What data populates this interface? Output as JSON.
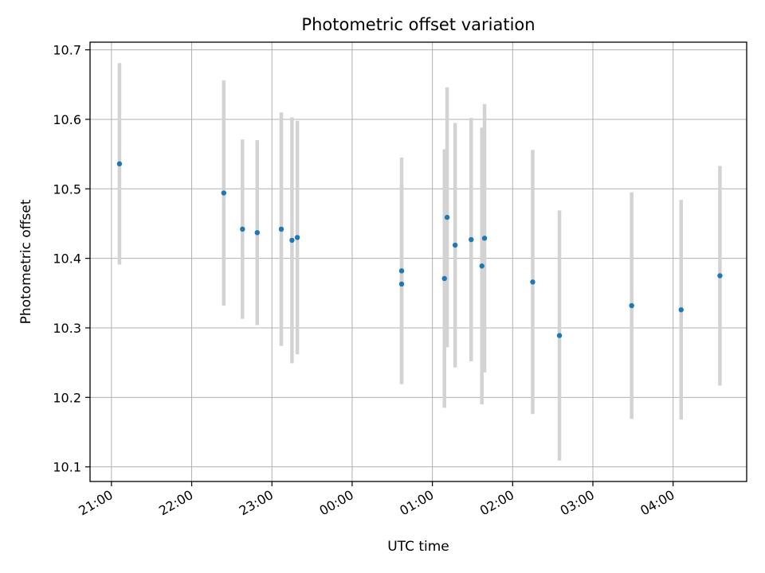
{
  "chart_data": {
    "type": "scatter",
    "title": "Photometric offset variation",
    "xlabel": "UTC time",
    "ylabel": "Photometric offset",
    "x_ticks": [
      "21:00",
      "22:00",
      "23:00",
      "00:00",
      "01:00",
      "02:00",
      "03:00",
      "04:00"
    ],
    "y_ticks": [
      "10.1",
      "10.2",
      "10.3",
      "10.4",
      "10.5",
      "10.6",
      "10.7"
    ],
    "xlim": [
      "20:44",
      "04:55"
    ],
    "ylim": [
      10.079,
      10.711
    ],
    "grid": true,
    "colors": {
      "point": "#1f77b4",
      "errorbar": "#d3d3d3",
      "grid": "#b0b0b0"
    },
    "points": [
      {
        "t": "21:06",
        "y": 10.536,
        "err": 0.145
      },
      {
        "t": "22:24",
        "y": 10.494,
        "err": 0.162
      },
      {
        "t": "22:38",
        "y": 10.442,
        "err": 0.129
      },
      {
        "t": "22:49",
        "y": 10.437,
        "err": 0.133
      },
      {
        "t": "23:07",
        "y": 10.442,
        "err": 0.168
      },
      {
        "t": "23:15",
        "y": 10.426,
        "err": 0.177
      },
      {
        "t": "23:19",
        "y": 10.43,
        "err": 0.168
      },
      {
        "t": "00:37",
        "y": 10.382,
        "err": 0.163
      },
      {
        "t": "00:37",
        "y": 10.363,
        "err": 0.143
      },
      {
        "t": "01:09",
        "y": 10.371,
        "err": 0.186
      },
      {
        "t": "01:11",
        "y": 10.459,
        "err": 0.187
      },
      {
        "t": "01:17",
        "y": 10.419,
        "err": 0.176
      },
      {
        "t": "01:29",
        "y": 10.427,
        "err": 0.175
      },
      {
        "t": "01:37",
        "y": 10.389,
        "err": 0.199
      },
      {
        "t": "01:39",
        "y": 10.429,
        "err": 0.193
      },
      {
        "t": "02:15",
        "y": 10.366,
        "err": 0.19
      },
      {
        "t": "02:35",
        "y": 10.289,
        "err": 0.18
      },
      {
        "t": "03:29",
        "y": 10.332,
        "err": 0.163
      },
      {
        "t": "04:06",
        "y": 10.326,
        "err": 0.158
      },
      {
        "t": "04:35",
        "y": 10.375,
        "err": 0.158
      }
    ]
  }
}
